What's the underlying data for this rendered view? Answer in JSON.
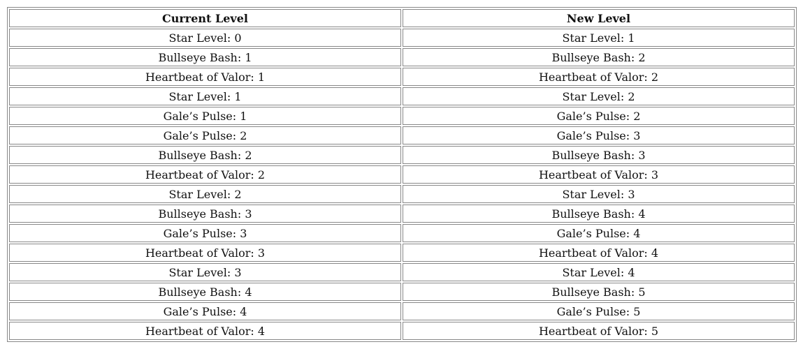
{
  "table": {
    "headers": [
      "Current Level",
      "New Level"
    ],
    "rows": [
      [
        "Star Level: 0",
        "Star Level: 1"
      ],
      [
        "Bullseye Bash: 1",
        "Bullseye Bash: 2"
      ],
      [
        "Heartbeat of Valor: 1",
        "Heartbeat of Valor: 2"
      ],
      [
        "Star Level: 1",
        "Star Level: 2"
      ],
      [
        "Gale’s Pulse: 1",
        "Gale’s Pulse: 2"
      ],
      [
        "Gale’s Pulse: 2",
        "Gale’s Pulse: 3"
      ],
      [
        "Bullseye Bash: 2",
        "Bullseye Bash: 3"
      ],
      [
        "Heartbeat of Valor: 2",
        "Heartbeat of Valor: 3"
      ],
      [
        "Star Level: 2",
        "Star Level: 3"
      ],
      [
        "Bullseye Bash: 3",
        "Bullseye Bash: 4"
      ],
      [
        "Gale’s Pulse: 3",
        "Gale’s Pulse: 4"
      ],
      [
        "Heartbeat of Valor: 3",
        "Heartbeat of Valor: 4"
      ],
      [
        "Star Level: 3",
        "Star Level: 4"
      ],
      [
        "Bullseye Bash: 4",
        "Bullseye Bash: 5"
      ],
      [
        "Gale’s Pulse: 4",
        "Gale’s Pulse: 5"
      ],
      [
        "Heartbeat of Valor: 4",
        "Heartbeat of Valor: 5"
      ]
    ]
  }
}
